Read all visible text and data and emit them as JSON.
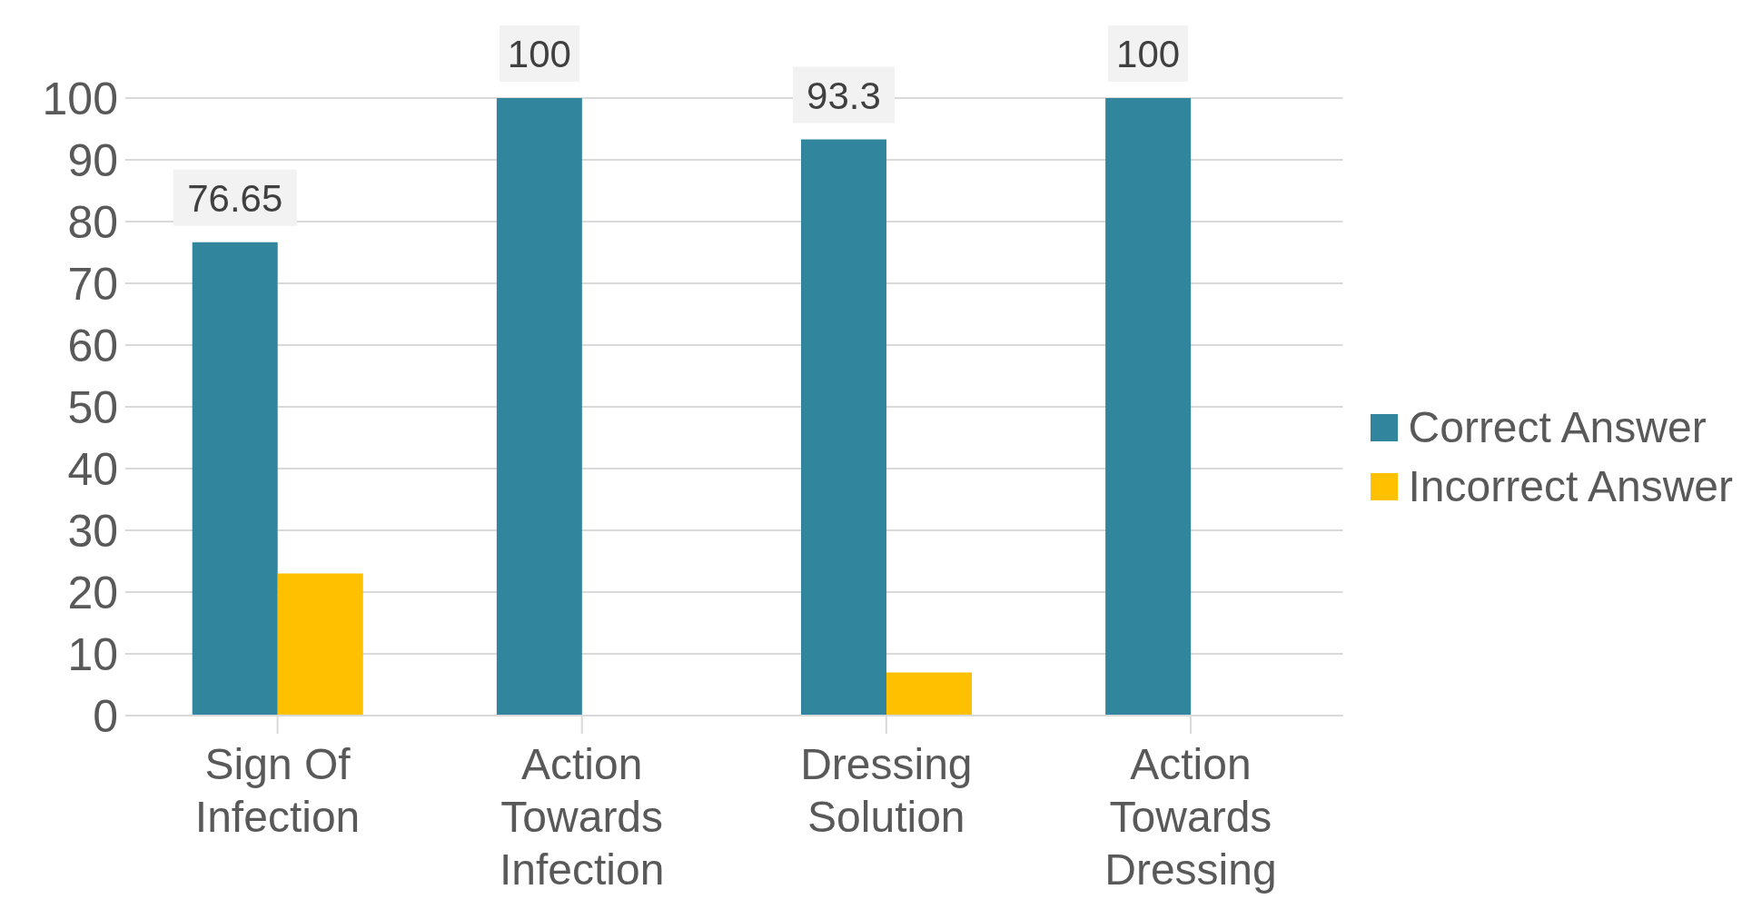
{
  "chart_data": {
    "type": "bar",
    "categories": [
      "Sign Of Infection",
      "Action Towards Infection",
      "Dressing Solution",
      "Action Towards Dressing"
    ],
    "series": [
      {
        "name": "Correct Answer",
        "color": "#31859c",
        "values": [
          76.65,
          100,
          93.3,
          100
        ],
        "value_labels": [
          "76.65",
          "100",
          "93.3",
          "100"
        ]
      },
      {
        "name": "Incorrect Answer",
        "color": "#ffc000",
        "values": [
          23,
          0,
          7,
          0
        ]
      }
    ],
    "ylim": [
      0,
      100
    ],
    "yticks": [
      0,
      10,
      20,
      30,
      40,
      50,
      60,
      70,
      80,
      90,
      100
    ],
    "grid": "y",
    "legend": "right"
  }
}
